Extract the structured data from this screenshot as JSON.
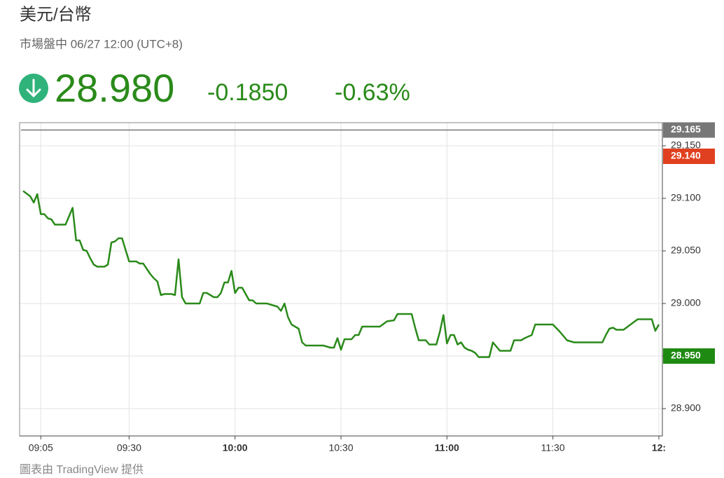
{
  "header": {
    "title": "美元/台幣",
    "status": "市場盤中 06/27 12:00 (UTC+8)",
    "price": "28.980",
    "change": "-0.1850",
    "change_pct": "-0.63%"
  },
  "chart_data": {
    "type": "line",
    "x": [
      "09:00",
      "09:02",
      "09:03",
      "09:04",
      "09:05",
      "09:06",
      "09:07",
      "09:08",
      "09:09",
      "09:12",
      "09:14",
      "09:15",
      "09:16",
      "09:17",
      "09:18",
      "09:19",
      "09:20",
      "09:21",
      "09:23",
      "09:24",
      "09:25",
      "09:26",
      "09:27",
      "09:28",
      "09:30",
      "09:32",
      "09:33",
      "09:34",
      "09:35",
      "09:36",
      "09:37",
      "09:38",
      "09:39",
      "09:40",
      "09:42",
      "09:43",
      "09:44",
      "09:45",
      "09:46",
      "09:50",
      "09:51",
      "09:52",
      "09:54",
      "09:55",
      "09:56",
      "09:57",
      "09:58",
      "09:59",
      "10:00",
      "10:01",
      "10:02",
      "10:04",
      "10:05",
      "10:06",
      "10:09",
      "10:12",
      "10:13",
      "10:14",
      "10:15",
      "10:16",
      "10:18",
      "10:19",
      "10:20",
      "10:25",
      "10:27",
      "10:28",
      "10:29",
      "10:30",
      "10:31",
      "10:33",
      "10:34",
      "10:35",
      "10:36",
      "10:41",
      "10:43",
      "10:45",
      "10:46",
      "10:50",
      "10:51",
      "10:52",
      "10:54",
      "10:55",
      "10:57",
      "10:58",
      "10:59",
      "11:00",
      "11:01",
      "11:02",
      "11:03",
      "11:04",
      "11:05",
      "11:06",
      "11:07",
      "11:08",
      "11:09",
      "11:12",
      "11:13",
      "11:15",
      "11:18",
      "11:19",
      "11:21",
      "11:22",
      "11:24",
      "11:25",
      "11:30",
      "11:32",
      "11:34",
      "11:36",
      "11:44",
      "11:45",
      "11:46",
      "11:47",
      "11:48",
      "11:50",
      "11:52",
      "11:54",
      "11:58",
      "11:59",
      "12:00"
    ],
    "values": [
      29.107,
      29.102,
      29.096,
      29.104,
      29.085,
      29.085,
      29.081,
      29.08,
      29.075,
      29.075,
      29.091,
      29.06,
      29.06,
      29.051,
      29.05,
      29.043,
      29.037,
      29.035,
      29.035,
      29.037,
      29.058,
      29.059,
      29.062,
      29.062,
      29.04,
      29.04,
      29.038,
      29.038,
      29.033,
      29.028,
      29.024,
      29.021,
      29.008,
      29.009,
      29.009,
      29.008,
      29.042,
      29.006,
      29.0,
      29.0,
      29.01,
      29.01,
      29.006,
      29.006,
      29.01,
      29.02,
      29.02,
      29.031,
      29.01,
      29.015,
      29.015,
      29.003,
      29.003,
      29.0,
      29.0,
      28.997,
      28.993,
      29.0,
      28.987,
      28.98,
      28.976,
      28.963,
      28.96,
      28.96,
      28.958,
      28.958,
      28.967,
      28.956,
      28.966,
      28.966,
      28.97,
      28.97,
      28.978,
      28.978,
      28.983,
      28.984,
      28.99,
      28.99,
      28.977,
      28.965,
      28.965,
      28.961,
      28.961,
      28.973,
      28.989,
      28.962,
      28.97,
      28.97,
      28.961,
      28.963,
      28.958,
      28.956,
      28.955,
      28.953,
      28.949,
      28.949,
      28.963,
      28.955,
      28.955,
      28.965,
      28.965,
      28.967,
      28.97,
      28.98,
      28.98,
      28.973,
      28.965,
      28.963,
      28.963,
      28.97,
      28.976,
      28.977,
      28.975,
      28.975,
      28.98,
      28.985,
      28.985,
      28.974,
      28.98
    ],
    "color": "#2a8a1a",
    "xlim": [
      "08:59",
      "12:01"
    ],
    "xticks": [
      "09:05",
      "09:30",
      "10:00",
      "10:30",
      "11:00",
      "11:30",
      {
        "value": "12:00",
        "label": "12:"
      }
    ],
    "ylim": [
      28.874,
      29.172
    ],
    "yticks": [
      {
        "value": 28.9,
        "label": "28.900"
      },
      {
        "value": 28.95,
        "label": "28.950"
      },
      {
        "value": 29,
        "label": "29.000"
      },
      {
        "value": 29.05,
        "label": "29.050"
      },
      {
        "value": 29.1,
        "label": "29.100"
      },
      {
        "value": 29.15,
        "label": "29.150"
      }
    ],
    "grid": true,
    "price_labels": [
      {
        "value": 29.165,
        "label": "29.165",
        "color": "#777777"
      },
      {
        "value": 29.14,
        "label": "29.140",
        "color": "#e0401f"
      },
      {
        "value": 28.95,
        "label": "28.950",
        "color": "#1f8a12"
      }
    ]
  },
  "footer": "圖表由 TradingView 提供"
}
